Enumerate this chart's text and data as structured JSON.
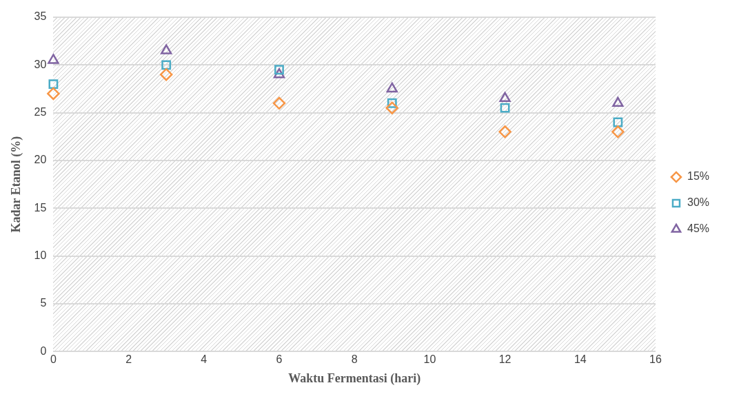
{
  "chart_data": {
    "type": "scatter",
    "xlabel": "Waktu Fermentasi (hari)",
    "ylabel": "Kadar Etanol (%)",
    "x": [
      0,
      3,
      6,
      9,
      12,
      15
    ],
    "series": [
      {
        "name": "15%",
        "color": "#f79646",
        "marker": "diamond",
        "values": [
          27,
          29,
          26,
          25.5,
          23,
          23
        ]
      },
      {
        "name": "30%",
        "color": "#4bacc6",
        "marker": "square",
        "values": [
          28,
          30,
          29.5,
          26,
          25.5,
          24
        ]
      },
      {
        "name": "45%",
        "color": "#8064a2",
        "marker": "triangle",
        "values": [
          30.5,
          31.5,
          29,
          27.5,
          26.5,
          26
        ]
      }
    ],
    "xlim": [
      0,
      16
    ],
    "xticks": [
      0,
      2,
      4,
      6,
      8,
      10,
      12,
      14,
      16
    ],
    "ylim": [
      0,
      35
    ],
    "yticks": [
      0,
      5,
      10,
      15,
      20,
      25,
      30,
      35
    ],
    "grid": "y",
    "legend": "right"
  }
}
